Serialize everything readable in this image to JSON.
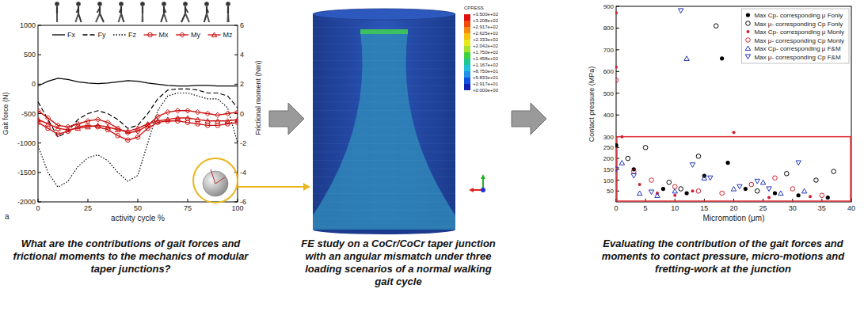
{
  "chart_data": [
    {
      "type": "line",
      "panel_label": "a",
      "x_label": "activity cycle %",
      "y_label": "Gait force (N)",
      "y2_label": "Frictional moment (Nm)",
      "x": [
        0,
        5,
        10,
        15,
        20,
        25,
        30,
        35,
        40,
        45,
        50,
        55,
        60,
        65,
        70,
        75,
        80,
        85,
        90,
        95,
        100
      ],
      "xlim": [
        0,
        100
      ],
      "xticks": [
        0,
        25,
        50,
        75,
        100
      ],
      "ylim": [
        -2000,
        1000
      ],
      "yticks": [
        -2000,
        -1500,
        -1000,
        -500,
        0,
        500,
        1000
      ],
      "y2lim": [
        -6,
        6
      ],
      "y2ticks": [
        -6,
        -4,
        -2,
        0,
        2,
        4,
        6
      ],
      "legend": "top",
      "series": [
        {
          "name": "Fx",
          "color": "#000000",
          "line_style": "solid",
          "values": [
            -30,
            50,
            100,
            80,
            40,
            20,
            10,
            20,
            40,
            60,
            50,
            20,
            0,
            -20,
            -30,
            -30,
            -20,
            -20,
            -30,
            -30,
            -30
          ]
        },
        {
          "name": "Fy",
          "color": "#000000",
          "line_style": "dashed",
          "values": [
            -300,
            -600,
            -900,
            -800,
            -600,
            -500,
            -450,
            -500,
            -600,
            -750,
            -700,
            -500,
            -250,
            -100,
            -80,
            -80,
            -100,
            -150,
            -150,
            -200,
            -400
          ]
        },
        {
          "name": "Fz",
          "color": "#000000",
          "line_style": "dotted",
          "values": [
            -1050,
            -1500,
            -1750,
            -1650,
            -1400,
            -1250,
            -1200,
            -1300,
            -1500,
            -1650,
            -1550,
            -1000,
            -450,
            -200,
            -150,
            -150,
            -200,
            -250,
            -250,
            -400,
            -1000
          ]
        },
        {
          "name": "Mx",
          "color": "#cc1111",
          "line_style": "solid",
          "marker": "circle",
          "axis": "y2",
          "values": [
            -0.6,
            -1.0,
            -1.4,
            -1.2,
            -0.9,
            -0.8,
            -0.9,
            -1.1,
            -1.5,
            -1.8,
            -1.6,
            -1.0,
            -0.6,
            -0.5,
            -0.5,
            -0.6,
            -0.7,
            -0.8,
            -0.8,
            -0.7,
            -0.6
          ]
        },
        {
          "name": "My",
          "color": "#cc1111",
          "line_style": "solid",
          "marker": "diamond",
          "axis": "y2",
          "values": [
            0.2,
            -0.3,
            -0.8,
            -0.9,
            -0.7,
            -0.5,
            -0.4,
            -0.6,
            -1.0,
            -1.3,
            -1.2,
            -0.8,
            -0.2,
            0.1,
            0.2,
            0.2,
            0.1,
            0.0,
            -0.1,
            0.0,
            0.1
          ]
        },
        {
          "name": "Mz",
          "color": "#cc1111",
          "line_style": "solid",
          "marker": "triangle-up",
          "axis": "y2",
          "values": [
            -0.4,
            -0.7,
            -1.0,
            -1.1,
            -1.0,
            -0.9,
            -0.8,
            -0.9,
            -1.1,
            -1.2,
            -1.0,
            -0.7,
            -0.5,
            -0.4,
            -0.3,
            -0.3,
            -0.4,
            -0.5,
            -0.5,
            -0.5,
            -0.4
          ]
        }
      ]
    },
    {
      "type": "scatter",
      "x_label": "Micromotion (μm)",
      "y_label": "Contact pressure (MPa)",
      "xlim": [
        0,
        40
      ],
      "xticks": [
        0,
        5,
        10,
        15,
        20,
        25,
        30,
        35,
        40
      ],
      "ylim": [
        0,
        900
      ],
      "yticks": [
        50,
        100,
        150,
        200,
        250,
        300,
        400,
        500,
        600,
        700,
        800,
        900
      ],
      "legend": "upper right",
      "highlight_box": {
        "x": [
          0,
          40
        ],
        "y": [
          0,
          300
        ],
        "color": "#e0303a"
      },
      "series": [
        {
          "name": "Max Cp- corresponding μ Fonly",
          "color": "#000000",
          "marker": "filled-circle",
          "x": [
            0,
            3,
            8,
            12,
            15,
            18,
            19,
            22,
            27,
            31,
            36
          ],
          "values": [
            260,
            150,
            60,
            40,
            120,
            660,
            180,
            60,
            40,
            30,
            20
          ]
        },
        {
          "name": "Max μ- corresponding Cp Fonly",
          "color": "#000000",
          "marker": "open-circle",
          "x": [
            2,
            5,
            9,
            11,
            14,
            17,
            24,
            29,
            34,
            37
          ],
          "values": [
            200,
            250,
            90,
            60,
            210,
            810,
            50,
            130,
            100,
            140
          ]
        },
        {
          "name": "Max Cp- corresponding μ Monly",
          "color": "#d02030",
          "marker": "small-dot",
          "x": [
            0,
            0,
            1,
            4,
            7,
            10,
            13,
            20,
            26,
            33
          ],
          "values": [
            870,
            620,
            300,
            80,
            40,
            30,
            50,
            320,
            20,
            25
          ]
        },
        {
          "name": "Max μ- corresponding Cp Monly",
          "color": "#d02030",
          "marker": "open-circle",
          "x": [
            0,
            3,
            6,
            10,
            14,
            18,
            23,
            27,
            30,
            35
          ],
          "values": [
            560,
            140,
            100,
            70,
            50,
            40,
            80,
            110,
            60,
            30
          ]
        },
        {
          "name": "Max Cp- corresponding μ F&M",
          "color": "#2233bb",
          "marker": "triangle-up",
          "x": [
            1,
            4,
            7,
            10,
            12,
            15,
            20,
            25,
            28,
            32
          ],
          "values": [
            180,
            40,
            30,
            50,
            660,
            110,
            60,
            90,
            40,
            50
          ]
        },
        {
          "name": "Max μ- corresponding Cp F&M",
          "color": "#2233bb",
          "marker": "triangle-down",
          "x": [
            0,
            3,
            6,
            11,
            13,
            16,
            21,
            24,
            26,
            31
          ],
          "values": [
            150,
            120,
            45,
            880,
            170,
            110,
            70,
            95,
            60,
            180
          ]
        }
      ]
    }
  ],
  "fe_model": {
    "legend_title": "CPRESS",
    "legend_labels": [
      "+3.500e+02",
      "+3.208e+02",
      "+2.917e+02",
      "+2.625e+02",
      "+2.333e+02",
      "+2.042e+02",
      "+1.750e+02",
      "+1.458e+02",
      "+1.167e+02",
      "+8.750e+01",
      "+5.833e+01",
      "+2.917e+01",
      "+0.000e+00"
    ]
  },
  "captions": [
    "What are the contributions of gait forces and frictional moments to the mechanics of modular taper junctions?",
    "FE study on a CoCr/CoCr taper junction with an angular mismatch under three loading scenarios of a normal walking gait cycle",
    "Evaluating the contribution of the gait forces and moments to contact pressure, micro-motions and fretting-work at the junction"
  ]
}
